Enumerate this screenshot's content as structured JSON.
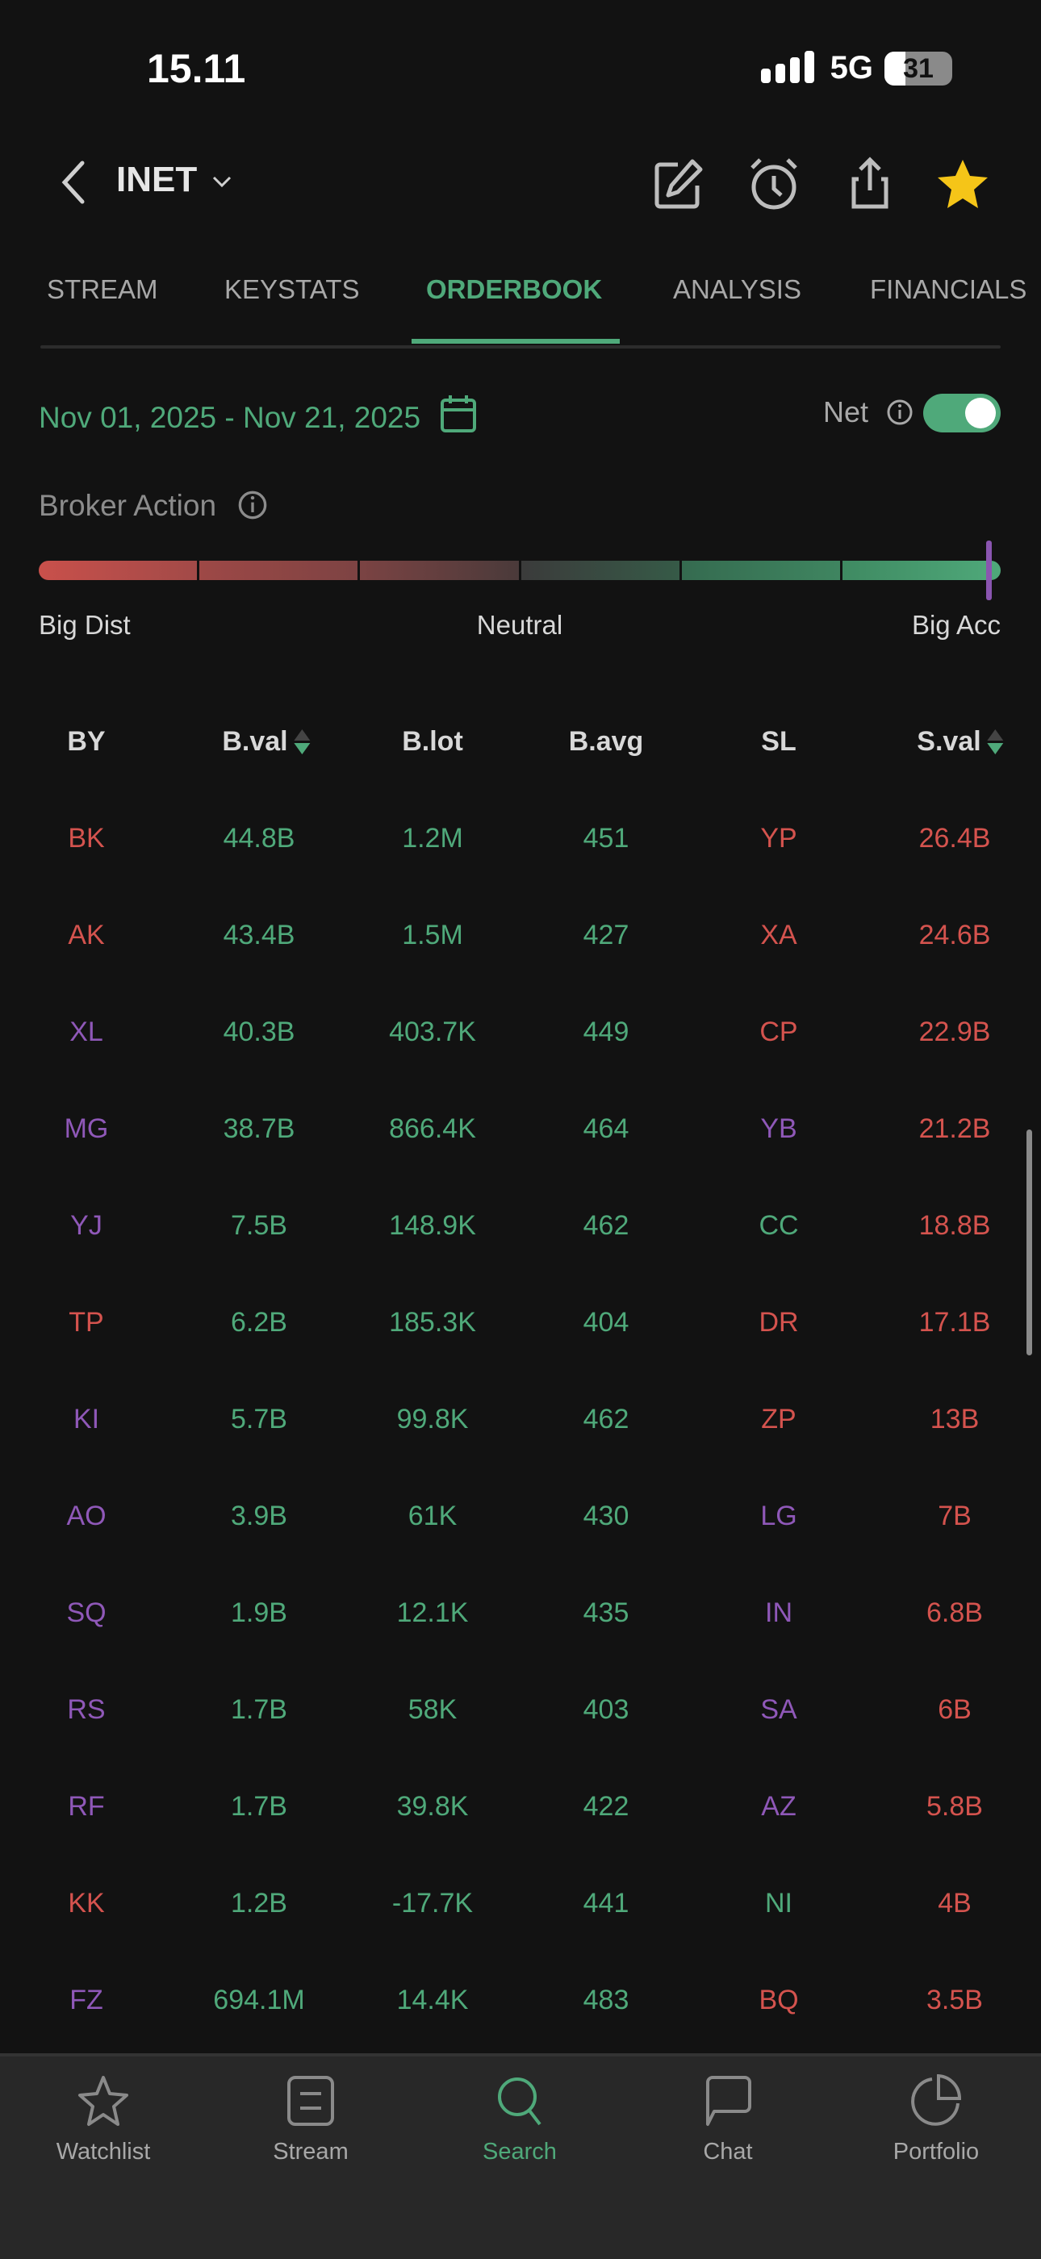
{
  "status_bar": {
    "time": "15.11",
    "network": "5G",
    "battery": "31"
  },
  "header": {
    "ticker": "INET",
    "icons": [
      "edit-icon",
      "alarm-icon",
      "share-icon",
      "star-icon"
    ],
    "star_color": "#f5c518"
  },
  "tabs": [
    {
      "label": "STREAM",
      "active": false
    },
    {
      "label": "KEYSTATS",
      "active": false
    },
    {
      "label": "ORDERBOOK",
      "active": true
    },
    {
      "label": "ANALYSIS",
      "active": false
    },
    {
      "label": "FINANCIALS",
      "active": false
    }
  ],
  "filters": {
    "date_range": "Nov 01, 2025 - Nov 21, 2025",
    "net_label": "Net",
    "net_enabled": true
  },
  "broker_action": {
    "label": "Broker Action",
    "scale_labels": {
      "left": "Big Dist",
      "center": "Neutral",
      "right": "Big Acc"
    },
    "indicator_position_percent": 99
  },
  "colors": {
    "accent": "#4fa97a",
    "sell": "#d4534e",
    "foreign": "#8f58b8",
    "background": "#121212"
  },
  "table": {
    "columns": [
      "BY",
      "B.val",
      "B.lot",
      "B.avg",
      "SL",
      "S.val"
    ],
    "sorted_columns": [
      "B.val",
      "S.val"
    ],
    "rows": [
      {
        "by": "BK",
        "by_color": "red",
        "bval": "44.8B",
        "blot": "1.2M",
        "bavg": "451",
        "sl": "YP",
        "sl_color": "red",
        "sval": "26.4B"
      },
      {
        "by": "AK",
        "by_color": "red",
        "bval": "43.4B",
        "blot": "1.5M",
        "bavg": "427",
        "sl": "XA",
        "sl_color": "red",
        "sval": "24.6B"
      },
      {
        "by": "XL",
        "by_color": "purple",
        "bval": "40.3B",
        "blot": "403.7K",
        "bavg": "449",
        "sl": "CP",
        "sl_color": "red",
        "sval": "22.9B"
      },
      {
        "by": "MG",
        "by_color": "purple",
        "bval": "38.7B",
        "blot": "866.4K",
        "bavg": "464",
        "sl": "YB",
        "sl_color": "purple",
        "sval": "21.2B"
      },
      {
        "by": "YJ",
        "by_color": "purple",
        "bval": "7.5B",
        "blot": "148.9K",
        "bavg": "462",
        "sl": "CC",
        "sl_color": "green",
        "sval": "18.8B"
      },
      {
        "by": "TP",
        "by_color": "red",
        "bval": "6.2B",
        "blot": "185.3K",
        "bavg": "404",
        "sl": "DR",
        "sl_color": "red",
        "sval": "17.1B"
      },
      {
        "by": "KI",
        "by_color": "purple",
        "bval": "5.7B",
        "blot": "99.8K",
        "bavg": "462",
        "sl": "ZP",
        "sl_color": "red",
        "sval": "13B"
      },
      {
        "by": "AO",
        "by_color": "purple",
        "bval": "3.9B",
        "blot": "61K",
        "bavg": "430",
        "sl": "LG",
        "sl_color": "purple",
        "sval": "7B"
      },
      {
        "by": "SQ",
        "by_color": "purple",
        "bval": "1.9B",
        "blot": "12.1K",
        "bavg": "435",
        "sl": "IN",
        "sl_color": "purple",
        "sval": "6.8B"
      },
      {
        "by": "RS",
        "by_color": "purple",
        "bval": "1.7B",
        "blot": "58K",
        "bavg": "403",
        "sl": "SA",
        "sl_color": "purple",
        "sval": "6B"
      },
      {
        "by": "RF",
        "by_color": "purple",
        "bval": "1.7B",
        "blot": "39.8K",
        "bavg": "422",
        "sl": "AZ",
        "sl_color": "purple",
        "sval": "5.8B"
      },
      {
        "by": "KK",
        "by_color": "red",
        "bval": "1.2B",
        "blot": "-17.7K",
        "bavg": "441",
        "sl": "NI",
        "sl_color": "green",
        "sval": "4B"
      },
      {
        "by": "FZ",
        "by_color": "purple",
        "bval": "694.1M",
        "blot": "14.4K",
        "bavg": "483",
        "sl": "BQ",
        "sl_color": "red",
        "sval": "3.5B"
      }
    ]
  },
  "bottom_nav": [
    {
      "label": "Watchlist",
      "icon": "star-outline-icon",
      "active": false
    },
    {
      "label": "Stream",
      "icon": "stream-icon",
      "active": false
    },
    {
      "label": "Search",
      "icon": "search-icon",
      "active": true
    },
    {
      "label": "Chat",
      "icon": "chat-icon",
      "active": false
    },
    {
      "label": "Portfolio",
      "icon": "pie-chart-icon",
      "active": false
    }
  ]
}
